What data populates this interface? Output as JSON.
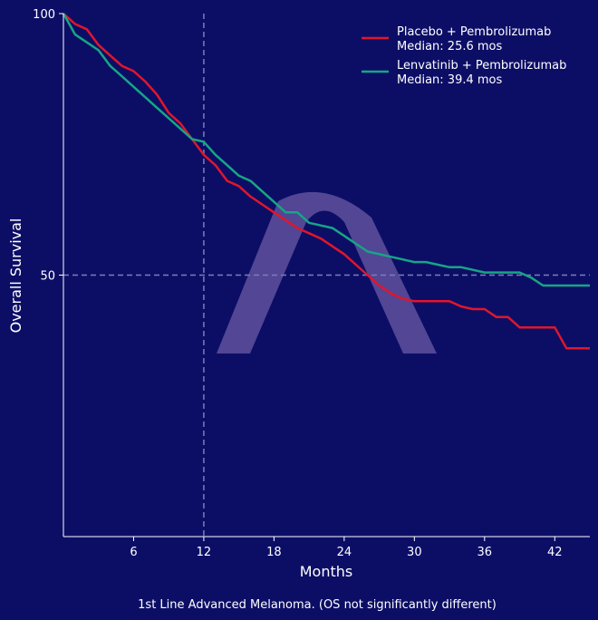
{
  "colors": {
    "background": "#0c0e66",
    "placebo": "#e0162b",
    "lenvatinib": "#17a585",
    "reference": "#7a7fb5",
    "watermark": "#6a5aa6"
  },
  "watermark": {
    "name": "lambda-logo",
    "glyph": "Λ"
  },
  "chart_data": {
    "type": "line",
    "title": "",
    "xlabel": "Months",
    "ylabel": "Overall Survival",
    "caption": "1st Line Advanced Melanoma. (OS not significantly different)",
    "xlim": [
      0,
      45
    ],
    "ylim": [
      0,
      100
    ],
    "xticks": [
      6,
      12,
      18,
      24,
      30,
      36,
      42
    ],
    "yticks": [
      50,
      100
    ],
    "grid": false,
    "legend_position": "top-right",
    "reference_lines": {
      "x": 12,
      "y": 50
    },
    "series": [
      {
        "name": "Placebo + Pembrolizumab",
        "median_label": "Median: 25.6 mos",
        "color": "#e0162b",
        "x": [
          0,
          0.5,
          1,
          2,
          3,
          4,
          5,
          6,
          7,
          8,
          9,
          10,
          11,
          12,
          13,
          14,
          15,
          16,
          17,
          18,
          19,
          20,
          21,
          22,
          23,
          24,
          25,
          26,
          27,
          28,
          29,
          30,
          31,
          32,
          33,
          34,
          35,
          36,
          37,
          38,
          39,
          40,
          41,
          42,
          43,
          44,
          45
        ],
        "y": [
          100,
          99,
          98,
          97,
          94,
          92,
          90,
          89,
          87,
          84.5,
          81,
          79,
          76,
          73,
          71,
          68,
          67,
          65,
          63.5,
          62,
          60.5,
          59,
          58,
          57,
          55.5,
          54,
          52,
          50,
          48,
          46.5,
          45.5,
          45,
          45,
          45,
          45,
          44,
          43.5,
          43.5,
          42,
          42,
          40,
          40,
          40,
          40,
          36,
          36,
          36
        ]
      },
      {
        "name": "Lenvatinib + Pembrolizumab",
        "median_label": "Median: 39.4 mos",
        "color": "#17a585",
        "x": [
          0,
          0.5,
          1,
          2,
          3,
          4,
          5,
          6,
          7,
          8,
          9,
          10,
          11,
          12,
          13,
          14,
          15,
          16,
          17,
          18,
          19,
          20,
          21,
          22,
          23,
          24,
          25,
          26,
          27,
          28,
          29,
          30,
          31,
          32,
          33,
          34,
          35,
          36,
          37,
          38,
          39,
          40,
          41,
          42,
          43,
          44,
          45
        ],
        "y": [
          100,
          98,
          96,
          94.5,
          93,
          90,
          88,
          86,
          84,
          82,
          80,
          78,
          76,
          75.5,
          73,
          71,
          69,
          68,
          66,
          64,
          62,
          62,
          60,
          59.5,
          59,
          57.5,
          56,
          54.5,
          54,
          53.5,
          53,
          52.5,
          52.5,
          52,
          51.5,
          51.5,
          51,
          50.5,
          50.5,
          50.5,
          50.5,
          49.5,
          48,
          48,
          48,
          48,
          48
        ]
      }
    ]
  }
}
